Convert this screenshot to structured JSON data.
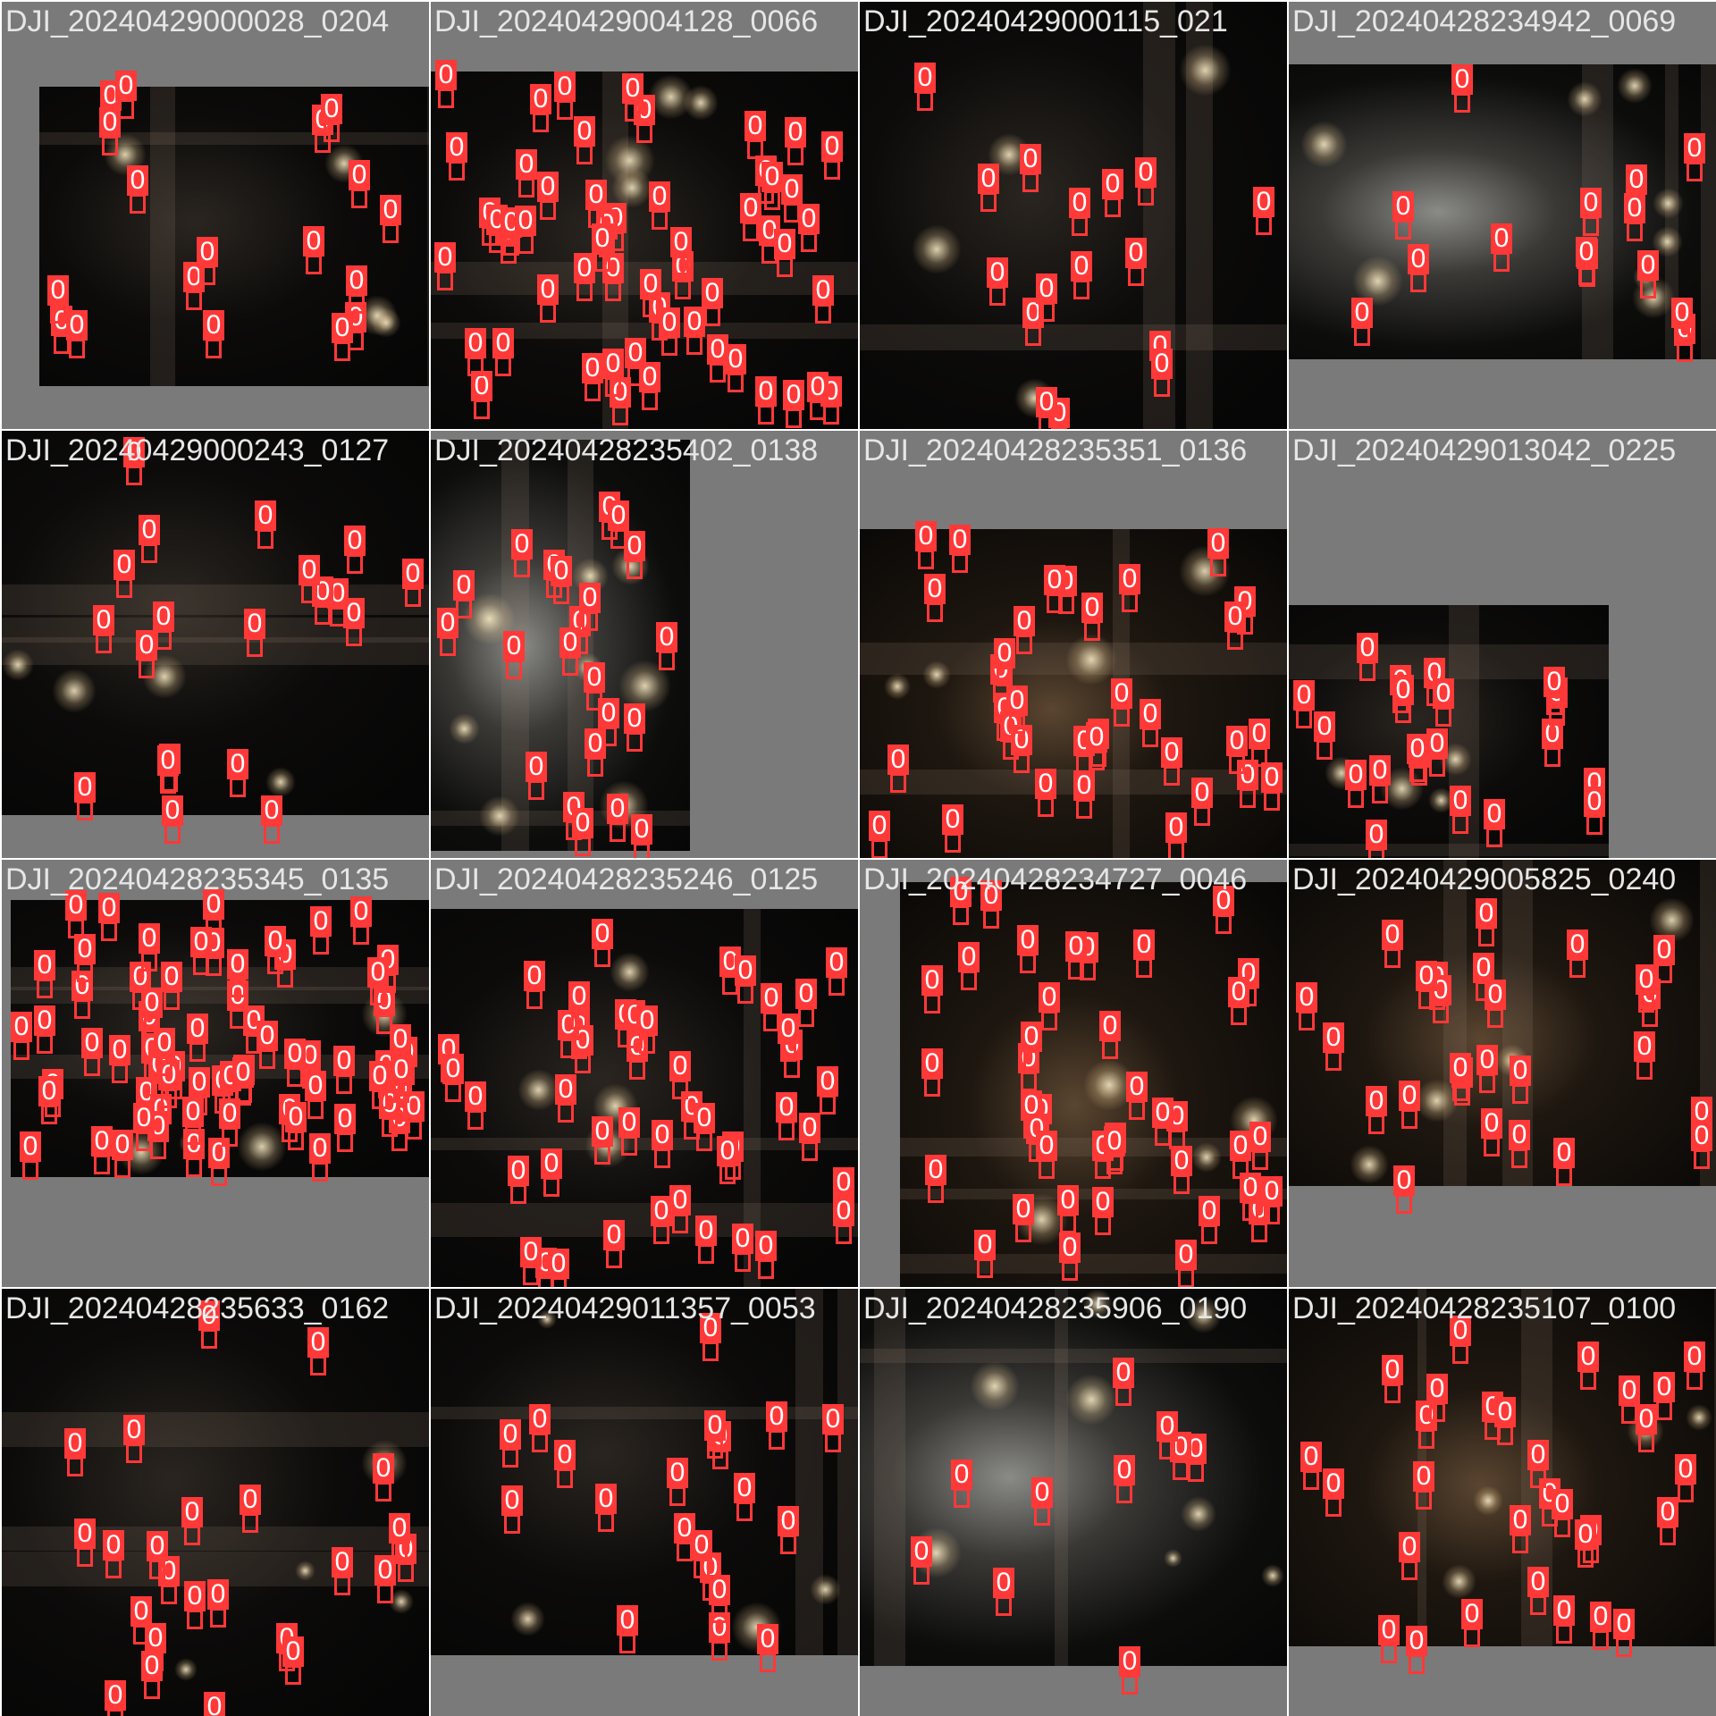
{
  "mosaic": {
    "label_color": "#ff3838",
    "caption_color": "#e6e6e6",
    "class_label": "0",
    "tiles": [
      {
        "caption": "DJI_20240429000028_0204",
        "tone": "dark"
      },
      {
        "caption": "DJI_20240429004128_0066",
        "tone": "dark"
      },
      {
        "caption": "DJI_20240429000115_021",
        "tone": "dark"
      },
      {
        "caption": "DJI_20240428234942_0069",
        "tone": "bright"
      },
      {
        "caption": "DJI_20240429000243_0127",
        "tone": "dark"
      },
      {
        "caption": "DJI_20240428235402_0138",
        "tone": "bright"
      },
      {
        "caption": "DJI_20240428235351_0136",
        "tone": "warm"
      },
      {
        "caption": "DJI_20240429013042_0225",
        "tone": "dark"
      },
      {
        "caption": "DJI_20240428235345_0135",
        "tone": "dark"
      },
      {
        "caption": "DJI_20240428235246_0125",
        "tone": "dark"
      },
      {
        "caption": "DJI_20240428234727_0046",
        "tone": "warm"
      },
      {
        "caption": "DJI_20240429005825_0240",
        "tone": "warm"
      },
      {
        "caption": "DJI_20240428235633_0162",
        "tone": "dark"
      },
      {
        "caption": "DJI_20240429011357_0053",
        "tone": "dark"
      },
      {
        "caption": "DJI_20240428235906_0190",
        "tone": "bright"
      },
      {
        "caption": "DJI_20240428235107_0100",
        "tone": "warm"
      }
    ]
  }
}
